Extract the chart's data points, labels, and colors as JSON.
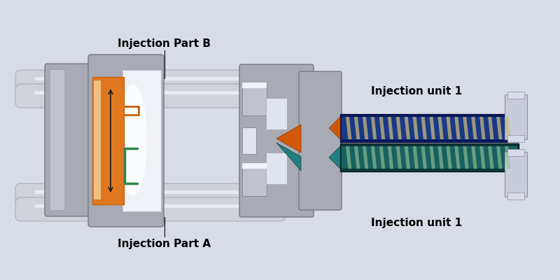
{
  "bg_color": "#d8dce6",
  "labels": {
    "injection_part_b": "Injection Part B",
    "injection_part_a": "Injection Part A",
    "injection_unit_1_top": "Injection unit 1",
    "injection_unit_1_bottom": "Injection unit 1"
  },
  "label_fontsize": 11,
  "label_fontweight": "bold",
  "mold_gray": "#a8aab4",
  "mold_light": "#c0c2cc",
  "mold_dark": "#787880",
  "rod_color": "#d0d2da",
  "rod_dark": "#a0a2aa",
  "orange_dark": "#c8600a",
  "orange_mid": "#e07820",
  "orange_light": "#f0c080",
  "green_color": "#2a8848",
  "cavity_light": "#e0e4ee",
  "cavity_white": "#f0f2f8",
  "screw_dark_blue": "#0a1a60",
  "screw_mid_blue": "#1a3888",
  "screw_highlight": "#c8b878",
  "screw_dark_teal": "#083838",
  "screw_mid_teal": "#186060",
  "screw_highlight_teal": "#90c090",
  "nozzle_tip_orange": "#d05808",
  "nozzle_tip_teal": "#208080",
  "hopper_color": "#c8ccd8",
  "connector_gray": "#b0b4c0"
}
